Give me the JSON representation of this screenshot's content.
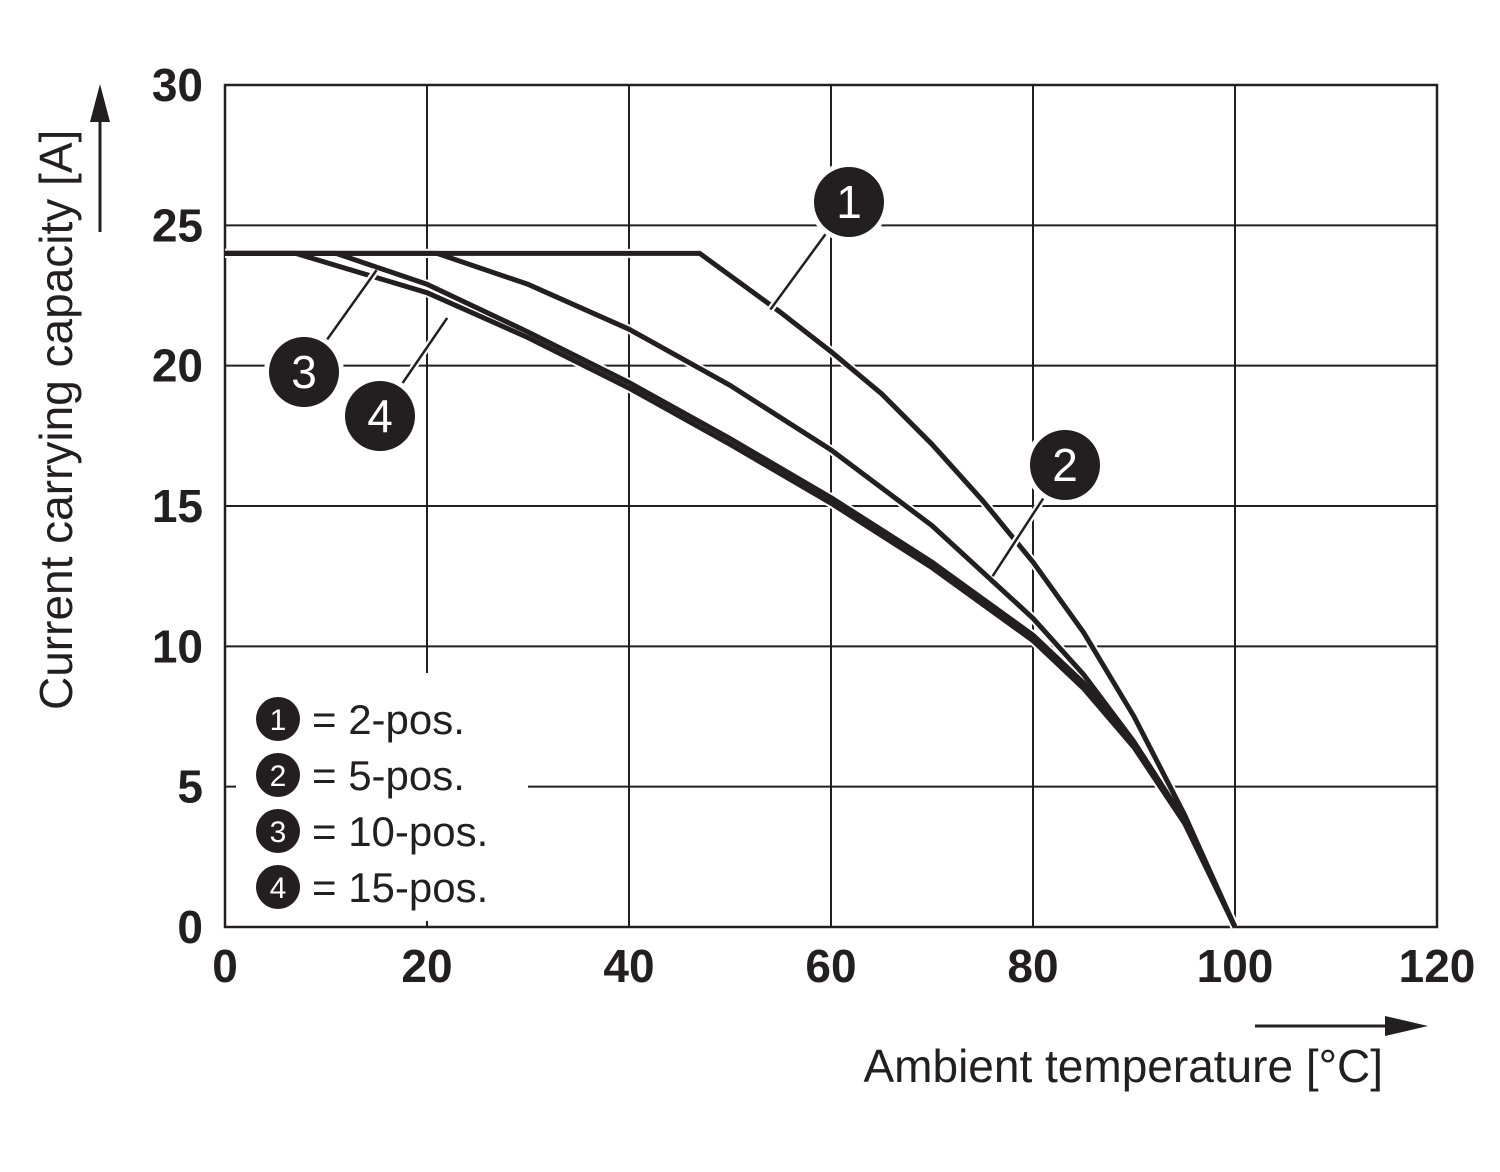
{
  "chart_data": {
    "type": "line",
    "xlabel": "Ambient temperature [°C]",
    "ylabel": "Current carrying capacity [A]",
    "xlim": [
      0,
      120
    ],
    "ylim": [
      0,
      30
    ],
    "x_ticks": [
      "0",
      "20",
      "40",
      "60",
      "80",
      "100",
      "120"
    ],
    "y_ticks": [
      "0",
      "5",
      "10",
      "15",
      "20",
      "25",
      "30"
    ],
    "grid": true,
    "legend_position": "bottom-left",
    "colors": {
      "line": "#231f20",
      "grid": "#231f20",
      "badge": "#231f20",
      "badge_text": "#ffffff"
    },
    "series": [
      {
        "id": "1",
        "name": "2-pos.",
        "legend_label": "= 2-pos.",
        "x": [
          0,
          47,
          55,
          60,
          65,
          70,
          75,
          80,
          85,
          90,
          95,
          100
        ],
        "y": [
          24,
          24,
          21.9,
          20.5,
          19.0,
          17.2,
          15.2,
          13.0,
          10.5,
          7.5,
          4.0,
          0
        ]
      },
      {
        "id": "2",
        "name": "5-pos.",
        "legend_label": "= 5-pos.",
        "x": [
          0,
          21,
          30,
          40,
          50,
          60,
          70,
          80,
          85,
          90,
          95,
          100
        ],
        "y": [
          24,
          24,
          22.9,
          21.3,
          19.3,
          17.0,
          14.3,
          11.0,
          9.0,
          6.6,
          3.8,
          0
        ]
      },
      {
        "id": "3",
        "name": "10-pos.",
        "legend_label": "= 10-pos.",
        "x": [
          0,
          11,
          20,
          30,
          40,
          50,
          60,
          70,
          80,
          85,
          90,
          95,
          100
        ],
        "y": [
          24,
          24,
          22.9,
          21.2,
          19.4,
          17.4,
          15.3,
          13.0,
          10.4,
          8.7,
          6.5,
          3.8,
          0
        ]
      },
      {
        "id": "4",
        "name": "15-pos.",
        "legend_label": "= 15-pos.",
        "x": [
          0,
          7,
          20,
          30,
          40,
          50,
          60,
          70,
          80,
          85,
          90,
          95,
          100
        ],
        "y": [
          24,
          24,
          22.6,
          21.0,
          19.2,
          17.2,
          15.1,
          12.8,
          10.2,
          8.5,
          6.4,
          3.7,
          0
        ]
      }
    ],
    "annotations": [
      {
        "label": "1",
        "series": "1",
        "leader_x": 54.0,
        "leader_y": 22.0
      },
      {
        "label": "2",
        "series": "2",
        "leader_x": 76.0,
        "leader_y": 12.5
      },
      {
        "label": "3",
        "series": "3",
        "leader_x": 15.0,
        "leader_y": 23.4
      },
      {
        "label": "4",
        "series": "4",
        "leader_x": 22.0,
        "leader_y": 21.7
      }
    ]
  }
}
